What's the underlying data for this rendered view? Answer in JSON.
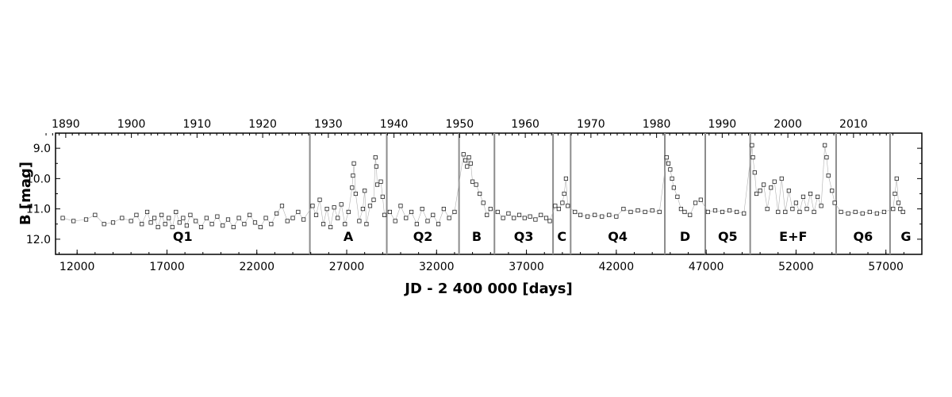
{
  "chart_data": {
    "type": "scatter",
    "title": "",
    "xlabel": "JD - 2 400 000 [days]",
    "ylabel": "B [mag]",
    "xlim": [
      10800,
      59000
    ],
    "ylim": [
      12.5,
      8.5
    ],
    "y_inverted": true,
    "xticks": [
      12000,
      17000,
      22000,
      27000,
      32000,
      37000,
      42000,
      47000,
      52000,
      57000
    ],
    "xtick_labels": [
      "12000",
      "17000",
      "22000",
      "27000",
      "32000",
      "37000",
      "42000",
      "47000",
      "52000",
      "57000"
    ],
    "yticks": [
      9.0,
      10.0,
      11.0,
      12.0
    ],
    "ytick_labels": [
      "9.0",
      "10.0",
      "11.0",
      "12.0"
    ],
    "top_axis": {
      "label": "",
      "ticks": [
        1890,
        1900,
        1910,
        1920,
        1930,
        1940,
        1950,
        1960,
        1970,
        1980,
        1990,
        2000,
        2010
      ],
      "tick_labels": [
        "1890",
        "1900",
        "1910",
        "1920",
        "1930",
        "1940",
        "1950",
        "1960",
        "1970",
        "1980",
        "1990",
        "2000",
        "2010"
      ]
    },
    "marker": "open-square",
    "segment_boundaries_jd": [
      24950,
      29230,
      33250,
      35220,
      38480,
      39460,
      44700,
      46950,
      49450,
      54230,
      57230
    ],
    "segments": [
      {
        "label": "Q1",
        "x_start": 10800,
        "x_end": 24950
      },
      {
        "label": "A",
        "x_start": 24950,
        "x_end": 29230
      },
      {
        "label": "Q2",
        "x_start": 29230,
        "x_end": 33250
      },
      {
        "label": "B",
        "x_start": 33250,
        "x_end": 35220
      },
      {
        "label": "Q3",
        "x_start": 35220,
        "x_end": 38480
      },
      {
        "label": "C",
        "x_start": 38480,
        "x_end": 39460
      },
      {
        "label": "Q4",
        "x_start": 39460,
        "x_end": 44700
      },
      {
        "label": "D",
        "x_start": 44700,
        "x_end": 46950
      },
      {
        "label": "Q5",
        "x_start": 46950,
        "x_end": 49450
      },
      {
        "label": "E+F",
        "x_start": 49450,
        "x_end": 54230
      },
      {
        "label": "Q6",
        "x_start": 54230,
        "x_end": 57230
      },
      {
        "label": "G",
        "x_start": 57230,
        "x_end": 59000
      }
    ],
    "series": [
      {
        "points": [
          [
            11200,
            11.3
          ],
          [
            11800,
            11.4
          ],
          [
            12500,
            11.35
          ],
          [
            13000,
            11.2
          ],
          [
            13500,
            11.5
          ],
          [
            14000,
            11.45
          ],
          [
            14500,
            11.3
          ],
          [
            15000,
            11.4
          ],
          [
            15300,
            11.2
          ],
          [
            15600,
            11.5
          ],
          [
            15900,
            11.1
          ],
          [
            16100,
            11.45
          ],
          [
            16300,
            11.3
          ],
          [
            16500,
            11.6
          ],
          [
            16700,
            11.2
          ],
          [
            16900,
            11.5
          ],
          [
            17100,
            11.3
          ],
          [
            17300,
            11.6
          ],
          [
            17500,
            11.1
          ],
          [
            17700,
            11.45
          ],
          [
            17900,
            11.3
          ],
          [
            18100,
            11.55
          ],
          [
            18300,
            11.2
          ],
          [
            18600,
            11.4
          ],
          [
            18900,
            11.6
          ],
          [
            19200,
            11.3
          ],
          [
            19500,
            11.5
          ],
          [
            19800,
            11.25
          ],
          [
            20100,
            11.55
          ],
          [
            20400,
            11.35
          ],
          [
            20700,
            11.6
          ],
          [
            21000,
            11.3
          ],
          [
            21300,
            11.5
          ],
          [
            21600,
            11.2
          ],
          [
            21900,
            11.45
          ],
          [
            22200,
            11.6
          ],
          [
            22500,
            11.3
          ],
          [
            22800,
            11.5
          ],
          [
            23100,
            11.15
          ],
          [
            23400,
            10.9
          ],
          [
            23700,
            11.4
          ],
          [
            24000,
            11.3
          ],
          [
            24300,
            11.1
          ],
          [
            24600,
            11.35
          ],
          [
            25100,
            10.9
          ],
          [
            25300,
            11.2
          ],
          [
            25500,
            10.7
          ],
          [
            25700,
            11.5
          ],
          [
            25900,
            11.0
          ],
          [
            26100,
            11.6
          ],
          [
            26300,
            10.95
          ],
          [
            26500,
            11.3
          ],
          [
            26700,
            10.85
          ],
          [
            26900,
            11.5
          ],
          [
            27100,
            11.1
          ],
          [
            27300,
            10.3
          ],
          [
            27350,
            9.9
          ],
          [
            27400,
            9.5
          ],
          [
            27500,
            10.5
          ],
          [
            27700,
            11.4
          ],
          [
            27900,
            11.0
          ],
          [
            28000,
            10.4
          ],
          [
            28100,
            11.5
          ],
          [
            28300,
            10.9
          ],
          [
            28500,
            10.7
          ],
          [
            28600,
            9.3
          ],
          [
            28650,
            9.6
          ],
          [
            28700,
            10.2
          ],
          [
            28900,
            10.1
          ],
          [
            29000,
            10.6
          ],
          [
            29100,
            11.2
          ],
          [
            29400,
            11.1
          ],
          [
            29700,
            11.4
          ],
          [
            30000,
            10.9
          ],
          [
            30300,
            11.3
          ],
          [
            30600,
            11.1
          ],
          [
            30900,
            11.5
          ],
          [
            31200,
            11.0
          ],
          [
            31500,
            11.4
          ],
          [
            31800,
            11.2
          ],
          [
            32100,
            11.5
          ],
          [
            32400,
            11.0
          ],
          [
            32700,
            11.3
          ],
          [
            33000,
            11.1
          ],
          [
            33500,
            9.2
          ],
          [
            33600,
            9.4
          ],
          [
            33700,
            9.6
          ],
          [
            33800,
            9.3
          ],
          [
            33900,
            9.5
          ],
          [
            34000,
            10.1
          ],
          [
            34200,
            10.2
          ],
          [
            34400,
            10.5
          ],
          [
            34600,
            10.8
          ],
          [
            34800,
            11.2
          ],
          [
            35000,
            11.0
          ],
          [
            35400,
            11.1
          ],
          [
            35700,
            11.3
          ],
          [
            36000,
            11.15
          ],
          [
            36300,
            11.3
          ],
          [
            36600,
            11.2
          ],
          [
            36900,
            11.3
          ],
          [
            37200,
            11.25
          ],
          [
            37500,
            11.35
          ],
          [
            37800,
            11.2
          ],
          [
            38100,
            11.3
          ],
          [
            38300,
            11.4
          ],
          [
            38600,
            10.9
          ],
          [
            38800,
            11.0
          ],
          [
            39000,
            10.8
          ],
          [
            39100,
            10.5
          ],
          [
            39200,
            10.0
          ],
          [
            39300,
            10.9
          ],
          [
            39700,
            11.1
          ],
          [
            40000,
            11.2
          ],
          [
            40400,
            11.25
          ],
          [
            40800,
            11.2
          ],
          [
            41200,
            11.25
          ],
          [
            41600,
            11.2
          ],
          [
            42000,
            11.25
          ],
          [
            42400,
            11.0
          ],
          [
            42800,
            11.1
          ],
          [
            43200,
            11.05
          ],
          [
            43600,
            11.1
          ],
          [
            44000,
            11.05
          ],
          [
            44400,
            11.1
          ],
          [
            44800,
            9.3
          ],
          [
            44900,
            9.5
          ],
          [
            45000,
            9.7
          ],
          [
            45100,
            10.0
          ],
          [
            45200,
            10.3
          ],
          [
            45400,
            10.6
          ],
          [
            45600,
            11.0
          ],
          [
            45800,
            11.1
          ],
          [
            46100,
            11.2
          ],
          [
            46400,
            10.8
          ],
          [
            46700,
            10.7
          ],
          [
            47100,
            11.1
          ],
          [
            47500,
            11.05
          ],
          [
            47900,
            11.1
          ],
          [
            48300,
            11.05
          ],
          [
            48700,
            11.1
          ],
          [
            49100,
            11.15
          ],
          [
            49550,
            8.9
          ],
          [
            49600,
            9.3
          ],
          [
            49700,
            9.8
          ],
          [
            49800,
            10.5
          ],
          [
            50000,
            10.4
          ],
          [
            50200,
            10.2
          ],
          [
            50400,
            11.0
          ],
          [
            50600,
            10.3
          ],
          [
            50800,
            10.1
          ],
          [
            51000,
            11.1
          ],
          [
            51200,
            10.0
          ],
          [
            51400,
            11.1
          ],
          [
            51600,
            10.4
          ],
          [
            51800,
            11.0
          ],
          [
            52000,
            10.8
          ],
          [
            52200,
            11.1
          ],
          [
            52400,
            10.6
          ],
          [
            52600,
            11.0
          ],
          [
            52800,
            10.5
          ],
          [
            53000,
            11.1
          ],
          [
            53200,
            10.6
          ],
          [
            53400,
            10.9
          ],
          [
            53600,
            8.9
          ],
          [
            53700,
            9.3
          ],
          [
            53800,
            9.9
          ],
          [
            54000,
            10.4
          ],
          [
            54150,
            10.8
          ],
          [
            54500,
            11.1
          ],
          [
            54900,
            11.15
          ],
          [
            55300,
            11.1
          ],
          [
            55700,
            11.15
          ],
          [
            56100,
            11.1
          ],
          [
            56500,
            11.15
          ],
          [
            56900,
            11.1
          ],
          [
            57400,
            11.0
          ],
          [
            57500,
            10.5
          ],
          [
            57600,
            10.0
          ],
          [
            57700,
            10.8
          ],
          [
            57800,
            11.0
          ],
          [
            57950,
            11.1
          ]
        ]
      }
    ]
  }
}
